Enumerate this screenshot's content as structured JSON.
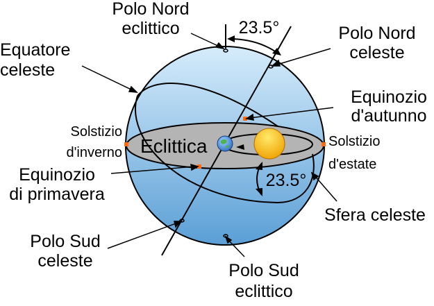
{
  "colors": {
    "sphere_light": "#d6ecfb",
    "sphere_dark": "#5a9fd6",
    "ecliptic_fill": "#b4b4b4",
    "sun_light": "#ffe96a",
    "sun_dark": "#f0a000",
    "marker_orange": "#ff6a13",
    "outline": "#000000"
  },
  "icons": {
    "sun": "sun-icon",
    "earth": "earth-icon"
  },
  "labels": {
    "ecliptic_north_pole": [
      "Polo Nord",
      "eclittico"
    ],
    "celestial_north_pole": [
      "Polo Nord",
      "celeste"
    ],
    "celestial_equator": [
      "Equatore",
      "celeste"
    ],
    "autumn_equinox": [
      "Equinozio",
      "d'autunno"
    ],
    "winter_solstice": [
      "Solstizio",
      "d'inverno"
    ],
    "ecliptic": "Eclittica",
    "summer_solstice": [
      "Solstizio",
      "d'estate"
    ],
    "spring_equinox": [
      "Equinozio",
      "di primavera"
    ],
    "celestial_sphere": "Sfera celeste",
    "celestial_south_pole": [
      "Polo Sud",
      "celeste"
    ],
    "ecliptic_south_pole": [
      "Polo Sud",
      "eclittico"
    ],
    "tilt_top": "23.5°",
    "tilt_right": "23.5°"
  }
}
